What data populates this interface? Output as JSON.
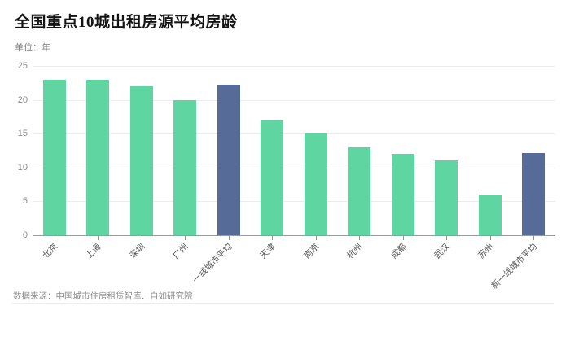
{
  "page": {
    "background": "#ffffff"
  },
  "header": {
    "title": "全国重点10城出租房源平均房龄",
    "unit_label": "单位：年"
  },
  "footer": {
    "source": "数据来源：中国城市住房租赁智库、自如研究院"
  },
  "chart_data": {
    "type": "bar",
    "title": "全国重点10城出租房源平均房龄",
    "unit": "年",
    "categories": [
      "北京",
      "上海",
      "深圳",
      "广州",
      "一线城市平均",
      "天津",
      "南京",
      "杭州",
      "成都",
      "武汉",
      "苏州",
      "新一线城市平均"
    ],
    "values": [
      23,
      23,
      22,
      20,
      22.2,
      17,
      15,
      13,
      12,
      11,
      6,
      12.2
    ],
    "highlight_indexes": [
      4,
      11
    ],
    "bar_color": "#5fd5a2",
    "highlight_color": "#566b97",
    "grid": true,
    "grid_color": "#ececec",
    "axis_color": "#9a9a9a",
    "ylim": [
      0,
      25
    ],
    "yticks": [
      0,
      5,
      10,
      15,
      20,
      25
    ],
    "x_label_rotation_deg": 45,
    "legend": "none"
  }
}
